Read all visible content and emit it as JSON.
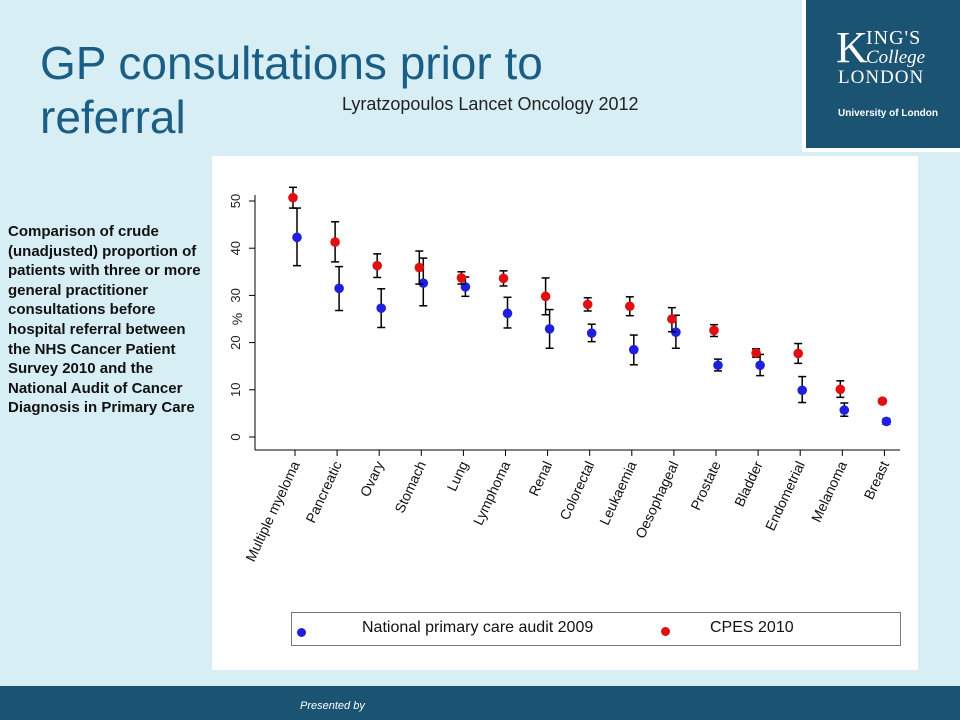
{
  "title": "GP consultations prior to referral",
  "citation": "Lyratzopoulos Lancet Oncology 2012",
  "logo": {
    "k": "K",
    "ings": "ING'S",
    "college": "College",
    "london": "LONDON",
    "university": "University of London"
  },
  "side_note": "Comparison of crude (unadjusted) proportion of patients with three or more general practitioner consultations before hospital referral between the  NHS Cancer Patient Survey 2010 and the National Audit of Cancer Diagnosis in Primary Care",
  "footer": {
    "presented_by": "Presented by"
  },
  "legend": {
    "blue_label": "National primary care audit 2009",
    "red_label": "CPES 2010"
  },
  "colors": {
    "title": "#1b5e85",
    "brand": "#1a5472",
    "audit": "#1f1fdd",
    "cpes": "#e01010",
    "background": "#d8eef5"
  },
  "chart_data": {
    "type": "scatter",
    "ylabel": "%",
    "ylim": [
      0,
      52
    ],
    "yticks": [
      0,
      10,
      20,
      30,
      40,
      50
    ],
    "grid": false,
    "legend_position": "bottom",
    "categories": [
      "Multiple myeloma",
      "Pancreatic",
      "Ovary",
      "Stomach",
      "Lung",
      "Lymphoma",
      "Renal",
      "Colorectal",
      "Leukaemia",
      "Oesophageal",
      "Prostate",
      "Bladder",
      "Endometrial",
      "Melanoma",
      "Breast"
    ],
    "series": [
      {
        "name": "National primary care audit 2009",
        "values": [
          42.3,
          31.5,
          27.3,
          32.6,
          31.8,
          26.2,
          22.9,
          22.0,
          18.5,
          22.2,
          15.2,
          15.2,
          9.9,
          5.7,
          3.3
        ],
        "lower": [
          36.3,
          26.8,
          23.2,
          27.8,
          29.8,
          23.1,
          18.8,
          20.2,
          15.3,
          18.8,
          14.0,
          13.0,
          7.3,
          4.4,
          2.7
        ],
        "upper": [
          48.5,
          36.1,
          31.4,
          37.9,
          33.9,
          29.6,
          27.0,
          23.9,
          21.6,
          25.8,
          16.5,
          17.5,
          12.8,
          7.2,
          3.9
        ]
      },
      {
        "name": "CPES 2010",
        "values": [
          50.7,
          41.3,
          36.3,
          35.9,
          33.7,
          33.6,
          29.8,
          28.1,
          27.7,
          25.0,
          22.6,
          17.8,
          17.7,
          10.1,
          7.6
        ],
        "lower": [
          48.5,
          37.1,
          33.8,
          32.4,
          32.4,
          32.0,
          25.9,
          26.7,
          25.7,
          22.3,
          21.3,
          16.9,
          15.6,
          8.4,
          7.1
        ],
        "upper": [
          52.9,
          45.6,
          38.8,
          39.4,
          35.0,
          35.2,
          33.7,
          29.5,
          29.7,
          27.4,
          23.8,
          18.7,
          19.8,
          11.9,
          8.1
        ]
      }
    ]
  }
}
